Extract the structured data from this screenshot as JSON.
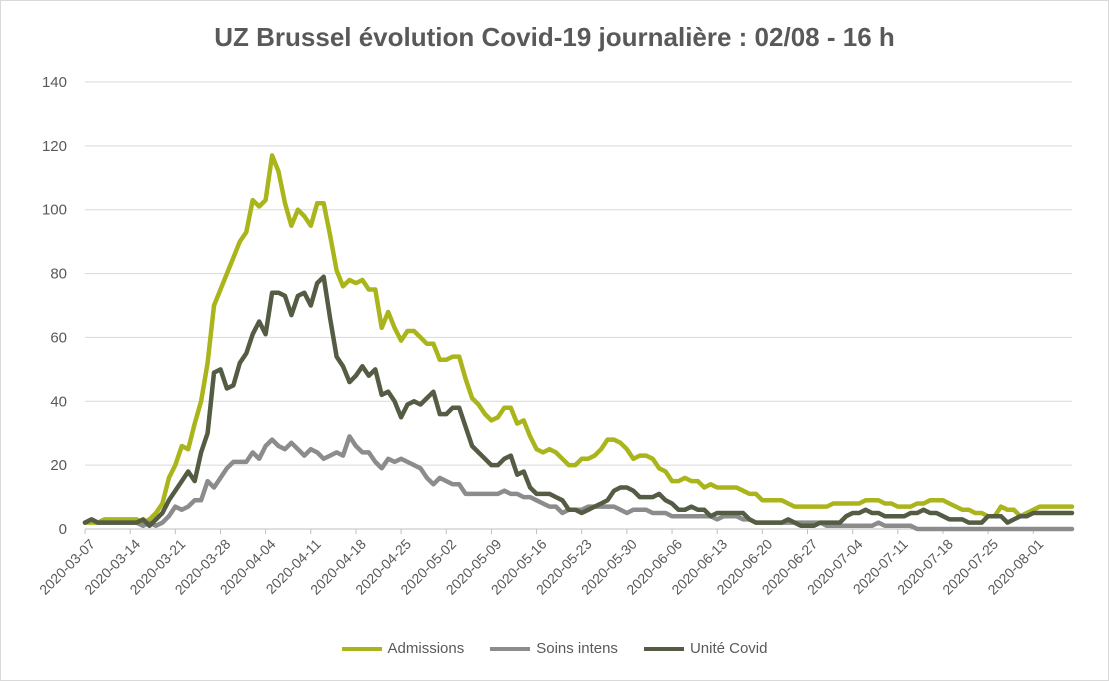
{
  "chart_data": {
    "type": "line",
    "title": "UZ Brussel évolution Covid-19 journalière : 02/08 - 16 h",
    "xlabel": "",
    "ylabel": "",
    "ylim": [
      0,
      140
    ],
    "yticks": [
      0,
      20,
      40,
      60,
      80,
      100,
      120,
      140
    ],
    "grid": true,
    "legend_position": "bottom",
    "x_start": "2020-03-07",
    "x_tick_labels": [
      "2020-03-07",
      "2020-03-14",
      "2020-03-21",
      "2020-03-28",
      "2020-04-04",
      "2020-04-11",
      "2020-04-18",
      "2020-04-25",
      "2020-05-02",
      "2020-05-09",
      "2020-05-16",
      "2020-05-23",
      "2020-05-30",
      "2020-06-06",
      "2020-06-13",
      "2020-06-20",
      "2020-06-27",
      "2020-07-04",
      "2020-07-11",
      "2020-07-18",
      "2020-07-25",
      "2020-08-01"
    ],
    "series": [
      {
        "name": "Admissions",
        "color": "#a9b51a",
        "values": [
          2,
          2,
          2,
          3,
          3,
          3,
          3,
          3,
          3,
          2,
          3,
          5,
          8,
          16,
          20,
          26,
          25,
          33,
          40,
          52,
          70,
          75,
          80,
          85,
          90,
          93,
          103,
          101,
          103,
          117,
          112,
          102,
          95,
          100,
          98,
          95,
          102,
          102,
          92,
          81,
          76,
          78,
          77,
          78,
          75,
          75,
          63,
          68,
          63,
          59,
          62,
          62,
          60,
          58,
          58,
          53,
          53,
          54,
          54,
          47,
          41,
          39,
          36,
          34,
          35,
          38,
          38,
          33,
          34,
          29,
          25,
          24,
          25,
          24,
          22,
          20,
          20,
          22,
          22,
          23,
          25,
          28,
          28,
          27,
          25,
          22,
          23,
          23,
          22,
          19,
          18,
          15,
          15,
          16,
          15,
          15,
          13,
          14,
          13,
          13,
          13,
          13,
          12,
          11,
          11,
          9,
          9,
          9,
          9,
          8,
          7,
          7,
          7,
          7,
          7,
          7,
          8,
          8,
          8,
          8,
          8,
          9,
          9,
          9,
          8,
          8,
          7,
          7,
          7,
          8,
          8,
          9,
          9,
          9,
          8,
          7,
          6,
          6,
          5,
          5,
          4,
          4,
          7,
          6,
          6,
          4,
          5,
          6,
          7,
          7,
          7,
          7,
          7,
          7
        ]
      },
      {
        "name": "Soins intens",
        "color": "#8c8c8c",
        "values": [
          2,
          3,
          2,
          2,
          2,
          2,
          2,
          2,
          2,
          1,
          2,
          1,
          2,
          4,
          7,
          6,
          7,
          9,
          9,
          15,
          13,
          16,
          19,
          21,
          21,
          21,
          24,
          22,
          26,
          28,
          26,
          25,
          27,
          25,
          23,
          25,
          24,
          22,
          23,
          24,
          23,
          29,
          26,
          24,
          24,
          21,
          19,
          22,
          21,
          22,
          21,
          20,
          19,
          16,
          14,
          16,
          15,
          14,
          14,
          11,
          11,
          11,
          11,
          11,
          11,
          12,
          11,
          11,
          10,
          10,
          9,
          8,
          7,
          7,
          5,
          6,
          6,
          6,
          7,
          7,
          7,
          7,
          7,
          6,
          5,
          6,
          6,
          6,
          5,
          5,
          5,
          4,
          4,
          4,
          4,
          4,
          4,
          4,
          3,
          4,
          4,
          4,
          3,
          3,
          2,
          2,
          2,
          2,
          2,
          2,
          2,
          2,
          2,
          2,
          2,
          1,
          1,
          1,
          1,
          1,
          1,
          1,
          1,
          2,
          1,
          1,
          1,
          1,
          1,
          0,
          0,
          0,
          0,
          0,
          0,
          0,
          0,
          0,
          0,
          0,
          0,
          0,
          0,
          0,
          0,
          0,
          0,
          0,
          0,
          0,
          0,
          0,
          0,
          0
        ]
      },
      {
        "name": "Unité Covid",
        "color": "#545c44",
        "values": [
          2,
          3,
          2,
          2,
          2,
          2,
          2,
          2,
          2,
          3,
          1,
          3,
          5,
          9,
          12,
          15,
          18,
          15,
          24,
          30,
          49,
          50,
          44,
          45,
          52,
          55,
          61,
          65,
          61,
          74,
          74,
          73,
          67,
          73,
          74,
          70,
          77,
          79,
          66,
          54,
          51,
          46,
          48,
          51,
          48,
          50,
          42,
          43,
          40,
          35,
          39,
          40,
          39,
          41,
          43,
          36,
          36,
          38,
          38,
          32,
          26,
          24,
          22,
          20,
          20,
          22,
          23,
          17,
          18,
          13,
          11,
          11,
          11,
          10,
          9,
          6,
          6,
          5,
          6,
          7,
          8,
          9,
          12,
          13,
          13,
          12,
          10,
          10,
          10,
          11,
          9,
          8,
          6,
          6,
          7,
          6,
          6,
          4,
          5,
          5,
          5,
          5,
          5,
          3,
          2,
          2,
          2,
          2,
          2,
          3,
          2,
          1,
          1,
          1,
          2,
          2,
          2,
          2,
          4,
          5,
          5,
          6,
          5,
          5,
          4,
          4,
          4,
          4,
          5,
          5,
          6,
          5,
          5,
          4,
          3,
          3,
          3,
          2,
          2,
          2,
          4,
          4,
          4,
          2,
          3,
          4,
          4,
          5,
          5,
          5,
          5,
          5,
          5,
          5
        ]
      }
    ]
  }
}
